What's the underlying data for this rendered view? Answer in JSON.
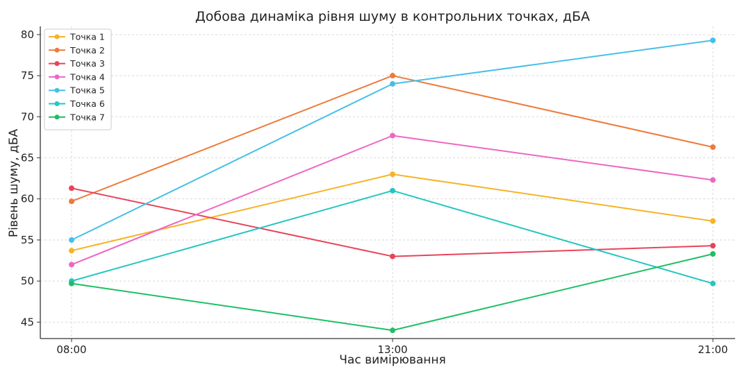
{
  "chart_data": {
    "type": "line",
    "title": "Добова динаміка рівня шуму в контрольних точках, дБА",
    "xlabel": "Час вимірювання",
    "ylabel": "Рівень шуму, дБА",
    "categories": [
      "08:00",
      "13:00",
      "21:00"
    ],
    "ylim": [
      43,
      81
    ],
    "yticks": [
      45,
      50,
      55,
      60,
      65,
      70,
      75,
      80
    ],
    "grid": true,
    "legend_position": "top-left",
    "series": [
      {
        "name": "Точка 1",
        "color": "#f6b325",
        "values": [
          53.7,
          63.0,
          57.3
        ]
      },
      {
        "name": "Точка 2",
        "color": "#ee7a3a",
        "values": [
          59.7,
          75.0,
          66.3
        ]
      },
      {
        "name": "Точка 3",
        "color": "#e8435a",
        "values": [
          61.3,
          53.0,
          54.3
        ]
      },
      {
        "name": "Точка 4",
        "color": "#ee66c4",
        "values": [
          52.0,
          67.7,
          62.3
        ]
      },
      {
        "name": "Точка 5",
        "color": "#46bfe8",
        "values": [
          55.0,
          74.0,
          79.3
        ]
      },
      {
        "name": "Точка 6",
        "color": "#24c7c1",
        "values": [
          50.0,
          61.0,
          49.7
        ]
      },
      {
        "name": "Точка 7",
        "color": "#1ebf63",
        "values": [
          49.7,
          44.0,
          53.3
        ]
      }
    ]
  }
}
